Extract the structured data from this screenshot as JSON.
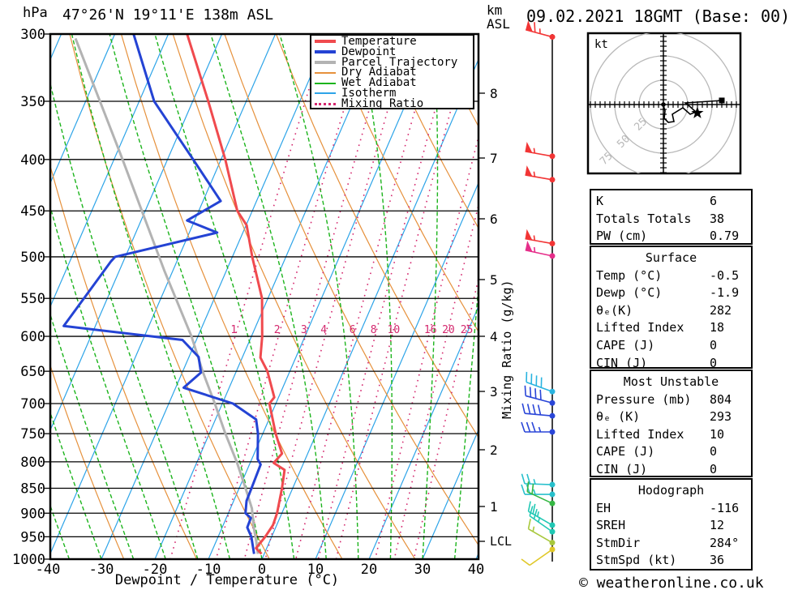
{
  "header": {
    "station_title": "47°26'N 19°11'E 138m ASL",
    "datetime": "09.02.2021 18GMT (Base: 00)"
  },
  "axes": {
    "pressure_unit": "hPa",
    "altitude_unit_km": "km",
    "altitude_unit_asl": "ASL",
    "x_label": "Dewpoint / Temperature (°C)",
    "mixing_ratio_label": "Mixing Ratio (g/kg)",
    "lcl_label": "LCL"
  },
  "legend": {
    "items": [
      {
        "label": "Temperature",
        "color": "#f04a4e",
        "style": "solid",
        "weight": 4
      },
      {
        "label": "Dewpoint",
        "color": "#2443d4",
        "style": "solid",
        "weight": 4
      },
      {
        "label": "Parcel Trajectory",
        "color": "#b3b3b3",
        "style": "solid",
        "weight": 4
      },
      {
        "label": "Dry Adiabat",
        "color": "#e6913c",
        "style": "solid",
        "weight": 2
      },
      {
        "label": "Wet Adiabat",
        "color": "#1cb41c",
        "style": "solid",
        "weight": 2
      },
      {
        "label": "Isotherm",
        "color": "#2da4e8",
        "style": "solid",
        "weight": 2
      },
      {
        "label": "Mixing Ratio",
        "color": "#d4286e",
        "style": "dotted",
        "weight": 3
      }
    ]
  },
  "panels": [
    {
      "title": "",
      "rows": [
        [
          "K",
          "6"
        ],
        [
          "Totals Totals",
          "38"
        ],
        [
          "PW (cm)",
          "0.79"
        ]
      ]
    },
    {
      "title": "Surface",
      "rows": [
        [
          "Temp (°C)",
          "-0.5"
        ],
        [
          "Dewp (°C)",
          "-1.9"
        ],
        [
          "θₑ(K)",
          "282"
        ],
        [
          "Lifted Index",
          "18"
        ],
        [
          "CAPE (J)",
          "0"
        ],
        [
          "CIN (J)",
          "0"
        ]
      ]
    },
    {
      "title": "Most Unstable",
      "rows": [
        [
          "Pressure (mb)",
          "804"
        ],
        [
          "θₑ (K)",
          "293"
        ],
        [
          "Lifted Index",
          "10"
        ],
        [
          "CAPE (J)",
          "0"
        ],
        [
          "CIN (J)",
          "0"
        ]
      ]
    },
    {
      "title": "Hodograph",
      "rows": [
        [
          "EH",
          "-116"
        ],
        [
          "SREH",
          "12"
        ],
        [
          "StmDir",
          "284°"
        ],
        [
          "StmSpd (kt)",
          "36"
        ]
      ]
    }
  ],
  "footer": {
    "credit": "© weatheronline.co.uk"
  },
  "chart_data": {
    "type": "skew-t log-p sounding",
    "pressure_axis": {
      "unit": "hPa",
      "ticks": [
        300,
        350,
        400,
        450,
        500,
        550,
        600,
        650,
        700,
        750,
        800,
        850,
        900,
        950,
        1000
      ]
    },
    "temp_axis": {
      "unit": "°C",
      "ticks": [
        -40,
        -30,
        -20,
        -10,
        0,
        10,
        20,
        30,
        40
      ]
    },
    "km_axis": {
      "unit": "km ASL",
      "ticks": [
        {
          "label": "8",
          "y": 115
        },
        {
          "label": "7",
          "y": 195
        },
        {
          "label": "6",
          "y": 270
        },
        {
          "label": "5",
          "y": 345
        },
        {
          "label": "4",
          "y": 415
        },
        {
          "label": "3",
          "y": 483
        },
        {
          "label": "2",
          "y": 555
        },
        {
          "label": "1",
          "y": 625
        }
      ],
      "lcl_y": 668
    },
    "mixing_ratio_lines": [
      1,
      2,
      3,
      4,
      6,
      8,
      10,
      16,
      20,
      25
    ],
    "series": {
      "temperature": {
        "color": "#f04a4e",
        "points": [
          [
            300,
            -56.5
          ],
          [
            350,
            -47.1
          ],
          [
            400,
            -39.2
          ],
          [
            450,
            -32.8
          ],
          [
            465,
            -29.9
          ],
          [
            500,
            -26.3
          ],
          [
            550,
            -21.1
          ],
          [
            600,
            -18.0
          ],
          [
            630,
            -16.6
          ],
          [
            650,
            -14.2
          ],
          [
            690,
            -10.8
          ],
          [
            700,
            -11.2
          ],
          [
            750,
            -7.6
          ],
          [
            785,
            -4.8
          ],
          [
            802,
            -5.6
          ],
          [
            815,
            -3.0
          ],
          [
            850,
            -2.0
          ],
          [
            900,
            -0.9
          ],
          [
            925,
            -0.7
          ],
          [
            950,
            -1.2
          ],
          [
            975,
            -2.0
          ],
          [
            988,
            -0.5
          ]
        ]
      },
      "dewpoint": {
        "color": "#2443d4",
        "points": [
          [
            300,
            -66.5
          ],
          [
            350,
            -57.2
          ],
          [
            400,
            -45.2
          ],
          [
            440,
            -36.7
          ],
          [
            460,
            -41.4
          ],
          [
            473,
            -34.8
          ],
          [
            500,
            -51.9
          ],
          [
            505,
            -52.3
          ],
          [
            586,
            -55.9
          ],
          [
            605,
            -32.6
          ],
          [
            629,
            -28.2
          ],
          [
            652,
            -26.5
          ],
          [
            675,
            -28.5
          ],
          [
            700,
            -18.0
          ],
          [
            726,
            -12.4
          ],
          [
            750,
            -10.9
          ],
          [
            795,
            -8.9
          ],
          [
            805,
            -7.9
          ],
          [
            850,
            -7.7
          ],
          [
            875,
            -7.6
          ],
          [
            900,
            -6.8
          ],
          [
            910,
            -5.4
          ],
          [
            930,
            -5.3
          ],
          [
            950,
            -3.8
          ],
          [
            988,
            -1.9
          ]
        ]
      },
      "parcel": {
        "color": "#b3b3b3",
        "points": [
          [
            303,
            -77.0
          ],
          [
            397,
            -58.9
          ],
          [
            516,
            -41.6
          ],
          [
            600,
            -31.2
          ],
          [
            650,
            -26.3
          ],
          [
            700,
            -21.4
          ],
          [
            750,
            -17.0
          ],
          [
            800,
            -12.6
          ],
          [
            850,
            -8.8
          ],
          [
            890,
            -6.0
          ],
          [
            930,
            -4.1
          ],
          [
            960,
            -2.5
          ],
          [
            988,
            -1.2
          ]
        ]
      }
    },
    "wind_barbs": [
      {
        "p": 302,
        "speed_kt": 65,
        "dir_deg": 285,
        "color": "#f23535"
      },
      {
        "p": 397,
        "speed_kt": 55,
        "dir_deg": 280,
        "color": "#f23535"
      },
      {
        "p": 419,
        "speed_kt": 55,
        "dir_deg": 280,
        "color": "#f23535"
      },
      {
        "p": 485,
        "speed_kt": 55,
        "dir_deg": 280,
        "color": "#f23535"
      },
      {
        "p": 499,
        "speed_kt": 55,
        "dir_deg": 282,
        "color": "#e62e8a"
      },
      {
        "p": 681,
        "speed_kt": 40,
        "dir_deg": 290,
        "color": "#2ab4e0"
      },
      {
        "p": 699,
        "speed_kt": 40,
        "dir_deg": 285,
        "color": "#2a46d8"
      },
      {
        "p": 720,
        "speed_kt": 40,
        "dir_deg": 275,
        "color": "#2a46d8"
      },
      {
        "p": 747,
        "speed_kt": 35,
        "dir_deg": 270,
        "color": "#2a46d8"
      },
      {
        "p": 843,
        "speed_kt": 25,
        "dir_deg": 272,
        "color": "#28c0cc"
      },
      {
        "p": 862,
        "speed_kt": 25,
        "dir_deg": 270,
        "color": "#28c0cc"
      },
      {
        "p": 880,
        "speed_kt": 20,
        "dir_deg": 295,
        "color": "#36b844"
      },
      {
        "p": 925,
        "speed_kt": 25,
        "dir_deg": 300,
        "color": "#20c8b4"
      },
      {
        "p": 939,
        "speed_kt": 25,
        "dir_deg": 305,
        "color": "#20c8b4"
      },
      {
        "p": 963,
        "speed_kt": 15,
        "dir_deg": 300,
        "color": "#a8c83c"
      },
      {
        "p": 978,
        "speed_kt": 10,
        "dir_deg": 235,
        "color": "#e0c828"
      }
    ],
    "hodograph": {
      "unit": "kt",
      "rings_kt": [
        25,
        50,
        75
      ],
      "ring_labels": [
        "25",
        "50",
        "75"
      ],
      "trace_kt": [
        [
          0,
          -0.8
        ],
        [
          1.7,
          -6.7
        ],
        [
          0.8,
          -14.2
        ],
        [
          5,
          -18.3
        ],
        [
          10.8,
          -17.5
        ],
        [
          9.2,
          -10
        ],
        [
          20,
          -3.3
        ],
        [
          27.5,
          -10
        ],
        [
          33.3,
          -7.5
        ],
        [
          25.8,
          -0.8
        ],
        [
          22.5,
          1.7
        ],
        [
          60,
          4.2
        ]
      ],
      "storm_motion_kt": [
        34.9,
        -8.7
      ],
      "end_marker_kt": [
        60,
        4.2
      ]
    }
  }
}
